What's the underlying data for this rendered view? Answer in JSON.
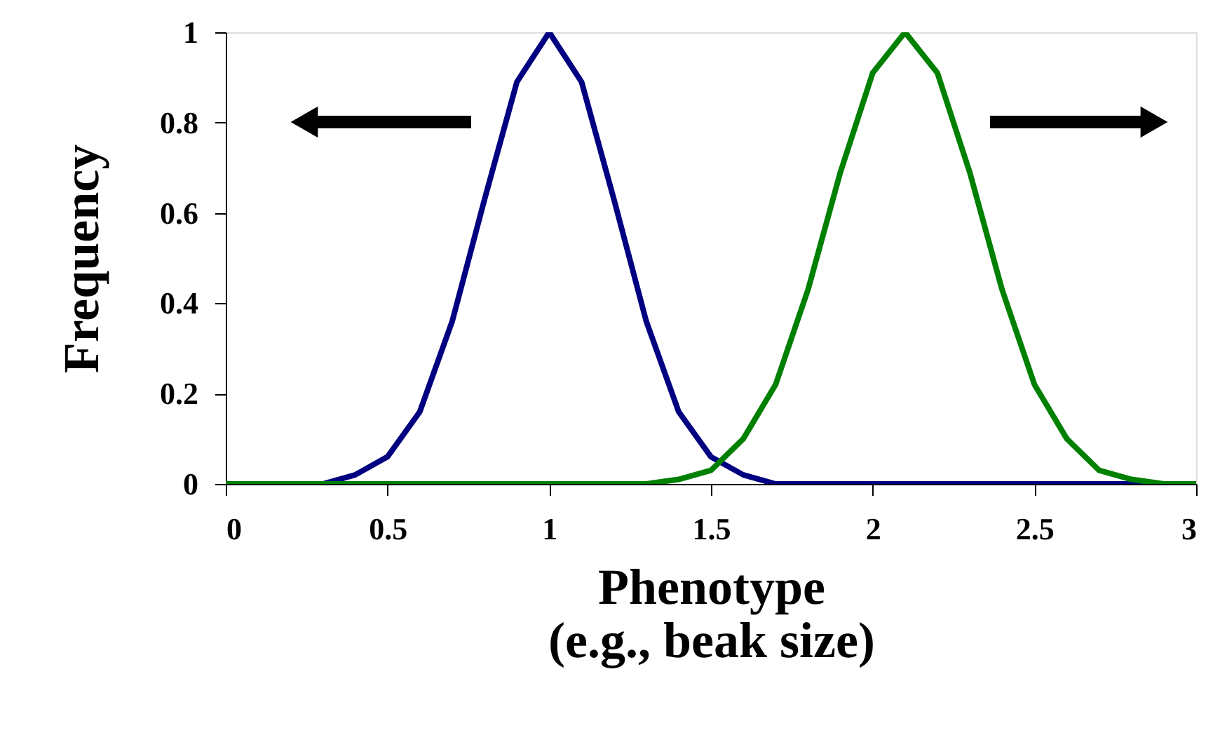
{
  "chart_data": {
    "type": "line",
    "xlabel": "Phenotype\n(e.g., beak size)",
    "ylabel": "Frequency",
    "x": [
      0,
      0.1,
      0.2,
      0.3,
      0.4,
      0.5,
      0.6,
      0.7,
      0.8,
      0.9,
      1.0,
      1.1,
      1.2,
      1.3,
      1.4,
      1.5,
      1.6,
      1.7,
      1.8,
      1.9,
      2.0,
      2.1,
      2.2,
      2.3,
      2.4,
      2.5,
      2.6,
      2.7,
      2.8,
      2.9,
      3.0
    ],
    "series": [
      {
        "color": "#000080",
        "values": [
          null,
          null,
          null,
          0,
          0.02,
          0.06,
          0.16,
          0.36,
          0.63,
          0.89,
          1,
          0.89,
          0.63,
          0.36,
          0.16,
          0.06,
          0.02,
          0,
          0,
          0,
          0,
          0,
          0,
          0,
          0,
          0,
          0,
          0,
          0,
          0,
          0
        ]
      },
      {
        "color": "#008000",
        "values": [
          0,
          0,
          0,
          0,
          0,
          0,
          0,
          0,
          0,
          0,
          0,
          0,
          0,
          0,
          0.01,
          0.03,
          0.1,
          0.22,
          0.43,
          0.69,
          0.91,
          1,
          0.91,
          0.69,
          0.43,
          0.22,
          0.1,
          0.03,
          0.01,
          0,
          0
        ]
      }
    ],
    "xlim": [
      0,
      3
    ],
    "xticks": [
      0,
      0.5,
      1,
      1.5,
      2,
      2.5,
      3
    ],
    "ylim": [
      0,
      1
    ],
    "yticks": [
      0,
      0.2,
      0.4,
      0.6,
      0.8,
      1
    ],
    "grid": false,
    "legend": false,
    "marker": "none",
    "line_style": "solid"
  }
}
